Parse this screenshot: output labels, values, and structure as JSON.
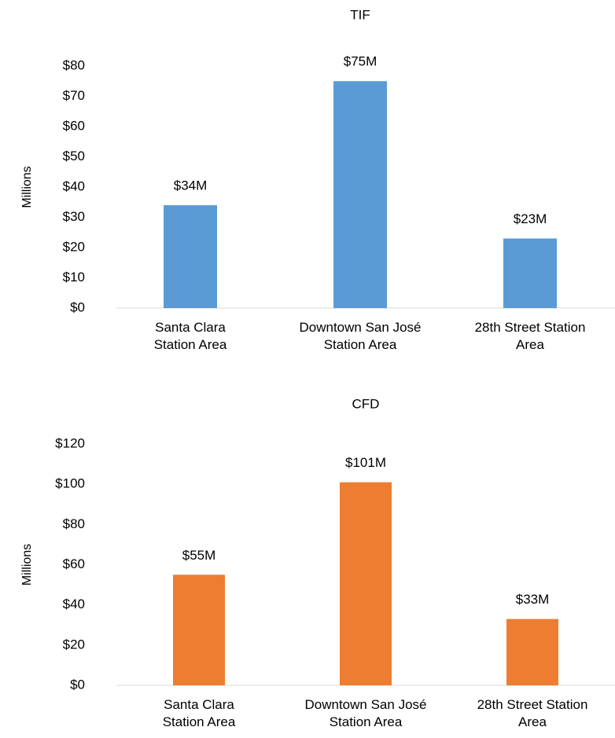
{
  "chart_data": [
    {
      "type": "bar",
      "title": "TIF",
      "y_label": "Millions",
      "categories": [
        "Santa Clara\nStation Area",
        "Downtown San José\nStation Area",
        "28th Street Station\nArea"
      ],
      "values": [
        34,
        75,
        23
      ],
      "value_labels": [
        "$34M",
        "$75M",
        "$23M"
      ],
      "color": "#5b9bd5",
      "ylim": [
        0,
        80
      ],
      "yticks": [
        {
          "value": 0,
          "label": "$0"
        },
        {
          "value": 10,
          "label": "$10"
        },
        {
          "value": 20,
          "label": "$20"
        },
        {
          "value": 30,
          "label": "$30"
        },
        {
          "value": 40,
          "label": "$40"
        },
        {
          "value": 50,
          "label": "$50"
        },
        {
          "value": 60,
          "label": "$60"
        },
        {
          "value": 70,
          "label": "$70"
        },
        {
          "value": 80,
          "label": "$80"
        }
      ],
      "grid": false
    },
    {
      "type": "bar",
      "title": "CFD",
      "y_label": "Millions",
      "categories": [
        "Santa Clara\nStation Area",
        "Downtown San José\nStation Area",
        "28th Street Station\nArea"
      ],
      "values": [
        55,
        101,
        33
      ],
      "value_labels": [
        "$55M",
        "$101M",
        "$33M"
      ],
      "color": "#ed7d31",
      "ylim": [
        0,
        120
      ],
      "yticks": [
        {
          "value": 0,
          "label": "$0"
        },
        {
          "value": 20,
          "label": "$20"
        },
        {
          "value": 40,
          "label": "$40"
        },
        {
          "value": 60,
          "label": "$60"
        },
        {
          "value": 80,
          "label": "$80"
        },
        {
          "value": 100,
          "label": "$100"
        },
        {
          "value": 120,
          "label": "$120"
        }
      ],
      "grid": false
    }
  ]
}
